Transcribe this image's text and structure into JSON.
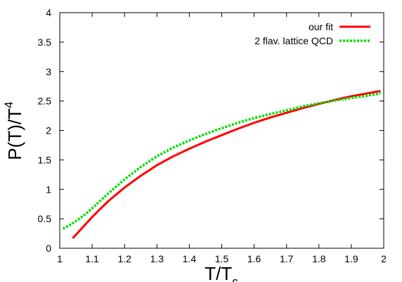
{
  "chart_data": {
    "type": "line",
    "xlabel": {
      "base": "T/T",
      "sub": "c"
    },
    "ylabel": {
      "base": "P(T)/T",
      "sup": "4"
    },
    "xlim": [
      1,
      2
    ],
    "ylim": [
      0,
      4
    ],
    "xticks": [
      "1",
      "1.1",
      "1.2",
      "1.3",
      "1.4",
      "1.5",
      "1.6",
      "1.7",
      "1.8",
      "1.9",
      "2"
    ],
    "yticks": [
      "0",
      "0.5",
      "1",
      "1.5",
      "2",
      "2.5",
      "3",
      "3.5",
      "4"
    ],
    "grid": false,
    "legend_position": "top-right",
    "series": [
      {
        "name": "our fit",
        "color": "#ff0000",
        "style": "solid",
        "x": [
          1.04,
          1.06,
          1.08,
          1.1,
          1.12,
          1.15,
          1.2,
          1.25,
          1.3,
          1.35,
          1.4,
          1.45,
          1.5,
          1.55,
          1.6,
          1.65,
          1.7,
          1.75,
          1.8,
          1.85,
          1.9,
          1.95,
          1.99
        ],
        "y": [
          0.17,
          0.29,
          0.41,
          0.53,
          0.64,
          0.8,
          1.03,
          1.23,
          1.41,
          1.56,
          1.69,
          1.81,
          1.92,
          2.03,
          2.13,
          2.22,
          2.3,
          2.38,
          2.45,
          2.52,
          2.58,
          2.63,
          2.67
        ]
      },
      {
        "name": "2 flav. lattice QCD",
        "color": "#00dd00",
        "style": "dotted",
        "x": [
          1.01,
          1.03,
          1.05,
          1.08,
          1.1,
          1.13,
          1.15,
          1.2,
          1.25,
          1.3,
          1.35,
          1.4,
          1.45,
          1.5,
          1.55,
          1.6,
          1.65,
          1.7,
          1.75,
          1.8,
          1.85,
          1.9,
          1.95,
          1.99
        ],
        "y": [
          0.33,
          0.39,
          0.46,
          0.58,
          0.68,
          0.83,
          0.93,
          1.17,
          1.38,
          1.56,
          1.71,
          1.83,
          1.94,
          2.04,
          2.13,
          2.21,
          2.28,
          2.34,
          2.41,
          2.46,
          2.51,
          2.55,
          2.59,
          2.63
        ]
      }
    ]
  }
}
